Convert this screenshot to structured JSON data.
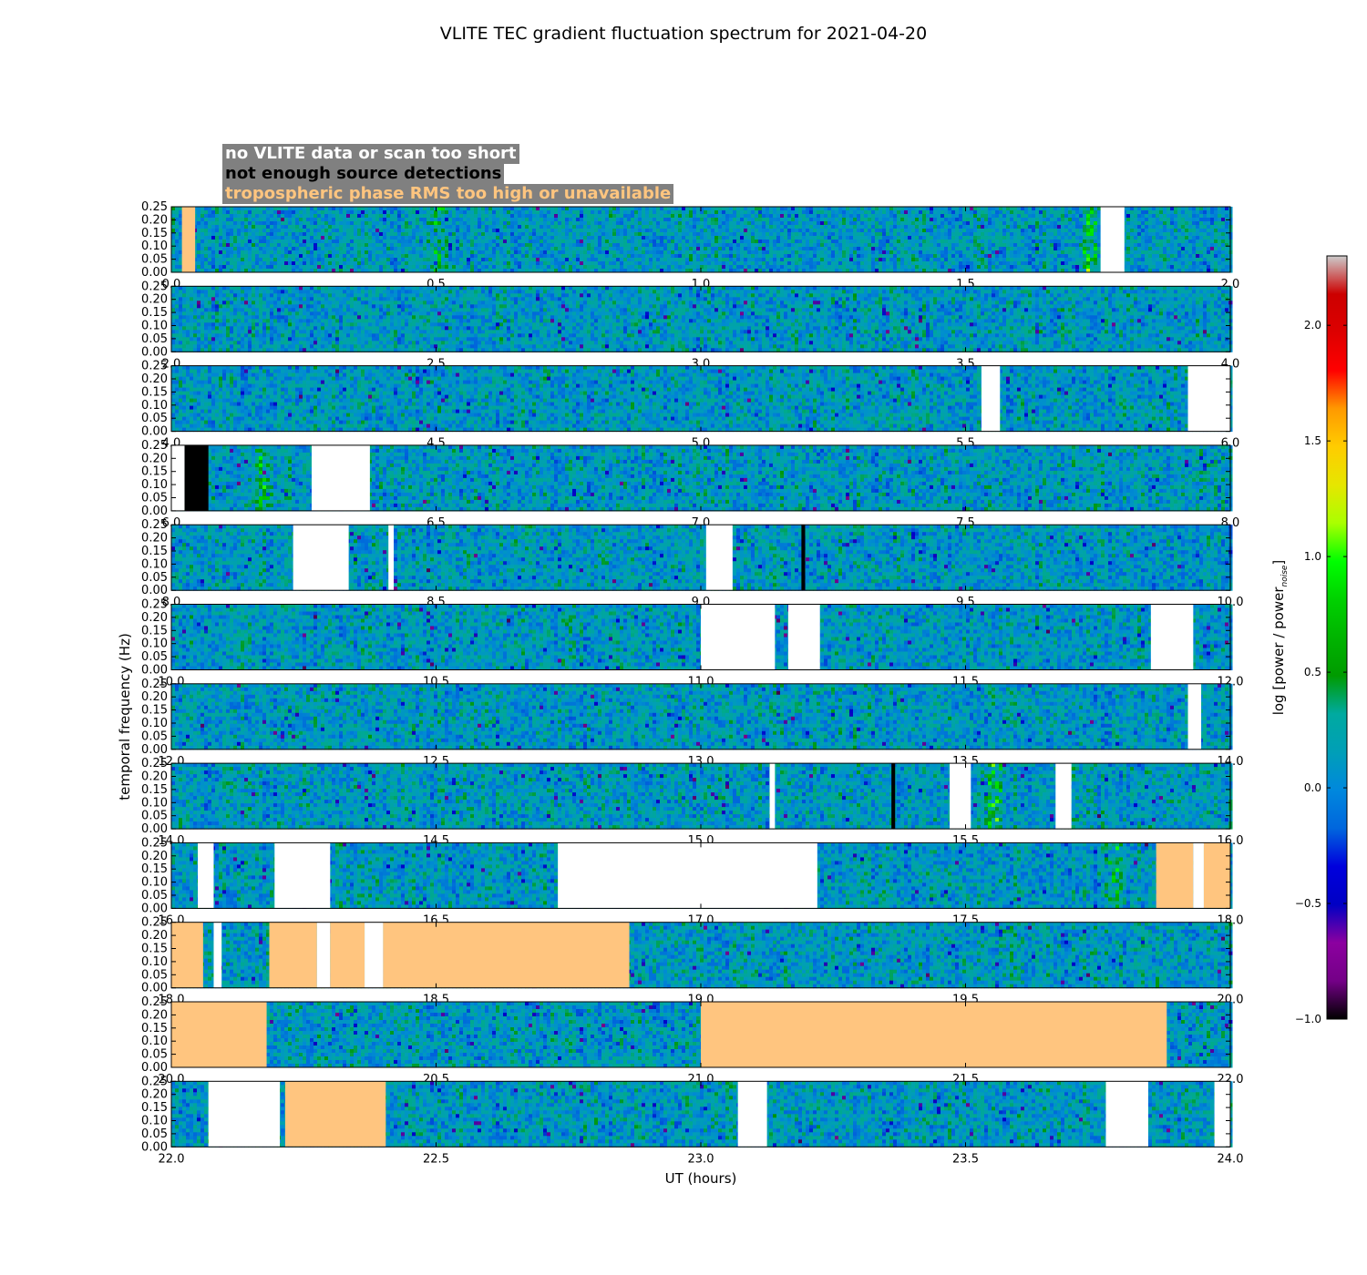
{
  "chart_data": {
    "type": "heatmap",
    "title": "VLITE TEC gradient fluctuation spectrum for 2021-04-20",
    "xlabel": "UT (hours)",
    "ylabel": "temporal frequency (Hz)",
    "colorbar": {
      "label": "log [power / power",
      "label_subscript": "noise",
      "label_close": "]",
      "range": [
        -1.0,
        2.3
      ],
      "ticks": [
        "−1.0",
        "−0.5",
        "0.0",
        "0.5",
        "1.0",
        "1.5",
        "2.0"
      ],
      "tick_values": [
        -1.0,
        -0.5,
        0.0,
        0.5,
        1.0,
        1.5,
        2.0
      ],
      "colormap": "nipy_spectral"
    },
    "ylim": [
      0,
      0.25
    ],
    "y_ticks": [
      "0.00",
      "0.05",
      "0.10",
      "0.15",
      "0.20",
      "0.25"
    ],
    "y_tick_values": [
      0.0,
      0.05,
      0.1,
      0.15,
      0.2,
      0.25
    ],
    "legend": [
      {
        "label": "no VLITE data or scan too short",
        "color": "#ffffff"
      },
      {
        "label": "not enough source detections",
        "color": "#000000"
      },
      {
        "label": "tropospheric phase RMS too high or unavailable",
        "color": "#ffc57f"
      }
    ],
    "flag_colors": {
      "nodata": "#ffffff",
      "nodet": "#000000",
      "trop": "#ffc57f"
    },
    "panels": [
      {
        "xlim": [
          0,
          2
        ],
        "x_ticks": [
          "0.0",
          "0.5",
          "1.0",
          "1.5",
          "2.0"
        ],
        "flags": [
          {
            "from": 0.02,
            "to": 0.045,
            "type": "trop"
          },
          {
            "from": 1.755,
            "to": 1.8,
            "type": "nodata"
          }
        ],
        "features": [
          {
            "at": 1.73,
            "level": 1.2
          },
          {
            "at": 0.5,
            "level": 0.7
          }
        ]
      },
      {
        "xlim": [
          2,
          4
        ],
        "x_ticks": [
          "2.0",
          "2.5",
          "3.0",
          "3.5",
          "4.0"
        ],
        "flags": [],
        "features": []
      },
      {
        "xlim": [
          4,
          6
        ],
        "x_ticks": [
          "4.0",
          "4.5",
          "5.0",
          "5.5",
          "6.0"
        ],
        "flags": [
          {
            "from": 5.53,
            "to": 5.565,
            "type": "nodata"
          },
          {
            "from": 5.92,
            "to": 6.0,
            "type": "nodata"
          }
        ],
        "features": []
      },
      {
        "xlim": [
          6,
          8
        ],
        "x_ticks": [
          "6.0",
          "6.5",
          "7.0",
          "7.5",
          "8.0"
        ],
        "flags": [
          {
            "from": 6.0,
            "to": 6.025,
            "type": "nodata"
          },
          {
            "from": 6.025,
            "to": 6.07,
            "type": "nodet"
          },
          {
            "from": 6.265,
            "to": 6.375,
            "type": "nodata"
          }
        ],
        "features": [
          {
            "at": 6.17,
            "level": 1.0
          }
        ]
      },
      {
        "xlim": [
          8,
          10
        ],
        "x_ticks": [
          "8.0",
          "8.5",
          "9.0",
          "9.5",
          "10.0"
        ],
        "flags": [
          {
            "from": 8.23,
            "to": 8.335,
            "type": "nodata"
          },
          {
            "from": 8.41,
            "to": 8.42,
            "type": "nodata"
          },
          {
            "from": 9.01,
            "to": 9.06,
            "type": "nodata"
          },
          {
            "from": 9.19,
            "to": 9.197,
            "type": "nodet"
          }
        ],
        "features": []
      },
      {
        "xlim": [
          10,
          12
        ],
        "x_ticks": [
          "10.0",
          "10.5",
          "11.0",
          "11.5",
          "12.0"
        ],
        "flags": [
          {
            "from": 11.0,
            "to": 11.14,
            "type": "nodata"
          },
          {
            "from": 11.165,
            "to": 11.225,
            "type": "nodata"
          },
          {
            "from": 11.85,
            "to": 11.93,
            "type": "nodata"
          }
        ],
        "features": []
      },
      {
        "xlim": [
          12,
          14
        ],
        "x_ticks": [
          "12.0",
          "12.5",
          "13.0",
          "13.5",
          "14.0"
        ],
        "flags": [
          {
            "from": 13.92,
            "to": 13.945,
            "type": "nodata"
          }
        ],
        "features": []
      },
      {
        "xlim": [
          14,
          16
        ],
        "x_ticks": [
          "14.0",
          "14.5",
          "15.0",
          "15.5",
          "16.0"
        ],
        "flags": [
          {
            "from": 15.13,
            "to": 15.14,
            "type": "nodata"
          },
          {
            "from": 15.36,
            "to": 15.367,
            "type": "nodet"
          },
          {
            "from": 15.47,
            "to": 15.51,
            "type": "nodata"
          },
          {
            "from": 15.67,
            "to": 15.7,
            "type": "nodata"
          }
        ],
        "features": [
          {
            "at": 15.55,
            "level": 1.2
          }
        ]
      },
      {
        "xlim": [
          16,
          18
        ],
        "x_ticks": [
          "16.0",
          "16.5",
          "17.0",
          "17.5",
          "18.0"
        ],
        "flags": [
          {
            "from": 16.05,
            "to": 16.08,
            "type": "nodata"
          },
          {
            "from": 16.195,
            "to": 16.3,
            "type": "nodata"
          },
          {
            "from": 16.73,
            "to": 17.22,
            "type": "nodata"
          },
          {
            "from": 17.86,
            "to": 17.93,
            "type": "trop"
          },
          {
            "from": 17.93,
            "to": 17.95,
            "type": "nodata"
          },
          {
            "from": 17.95,
            "to": 18.0,
            "type": "trop"
          }
        ],
        "features": [
          {
            "at": 17.78,
            "level": 1.1
          }
        ]
      },
      {
        "xlim": [
          18,
          20
        ],
        "x_ticks": [
          "18.0",
          "18.5",
          "19.0",
          "19.5",
          "20.0"
        ],
        "flags": [
          {
            "from": 18.0,
            "to": 18.06,
            "type": "trop"
          },
          {
            "from": 18.08,
            "to": 18.095,
            "type": "nodata"
          },
          {
            "from": 18.185,
            "to": 18.275,
            "type": "trop"
          },
          {
            "from": 18.275,
            "to": 18.3,
            "type": "nodata"
          },
          {
            "from": 18.3,
            "to": 18.365,
            "type": "trop"
          },
          {
            "from": 18.365,
            "to": 18.4,
            "type": "nodata"
          },
          {
            "from": 18.4,
            "to": 18.865,
            "type": "trop"
          }
        ],
        "features": []
      },
      {
        "xlim": [
          20,
          22
        ],
        "x_ticks": [
          "20.0",
          "20.5",
          "21.0",
          "21.5",
          "22.0"
        ],
        "flags": [
          {
            "from": 20.0,
            "to": 20.18,
            "type": "trop"
          },
          {
            "from": 21.0,
            "to": 21.88,
            "type": "trop"
          }
        ],
        "features": []
      },
      {
        "xlim": [
          22,
          24
        ],
        "x_ticks": [
          "22.0",
          "22.5",
          "23.0",
          "23.5",
          "24.0"
        ],
        "flags": [
          {
            "from": 22.07,
            "to": 22.205,
            "type": "nodata"
          },
          {
            "from": 22.215,
            "to": 22.405,
            "type": "trop"
          },
          {
            "from": 23.07,
            "to": 23.125,
            "type": "nodata"
          },
          {
            "from": 23.765,
            "to": 23.845,
            "type": "nodata"
          },
          {
            "from": 23.97,
            "to": 24.0,
            "type": "nodata"
          }
        ],
        "features": []
      }
    ]
  }
}
